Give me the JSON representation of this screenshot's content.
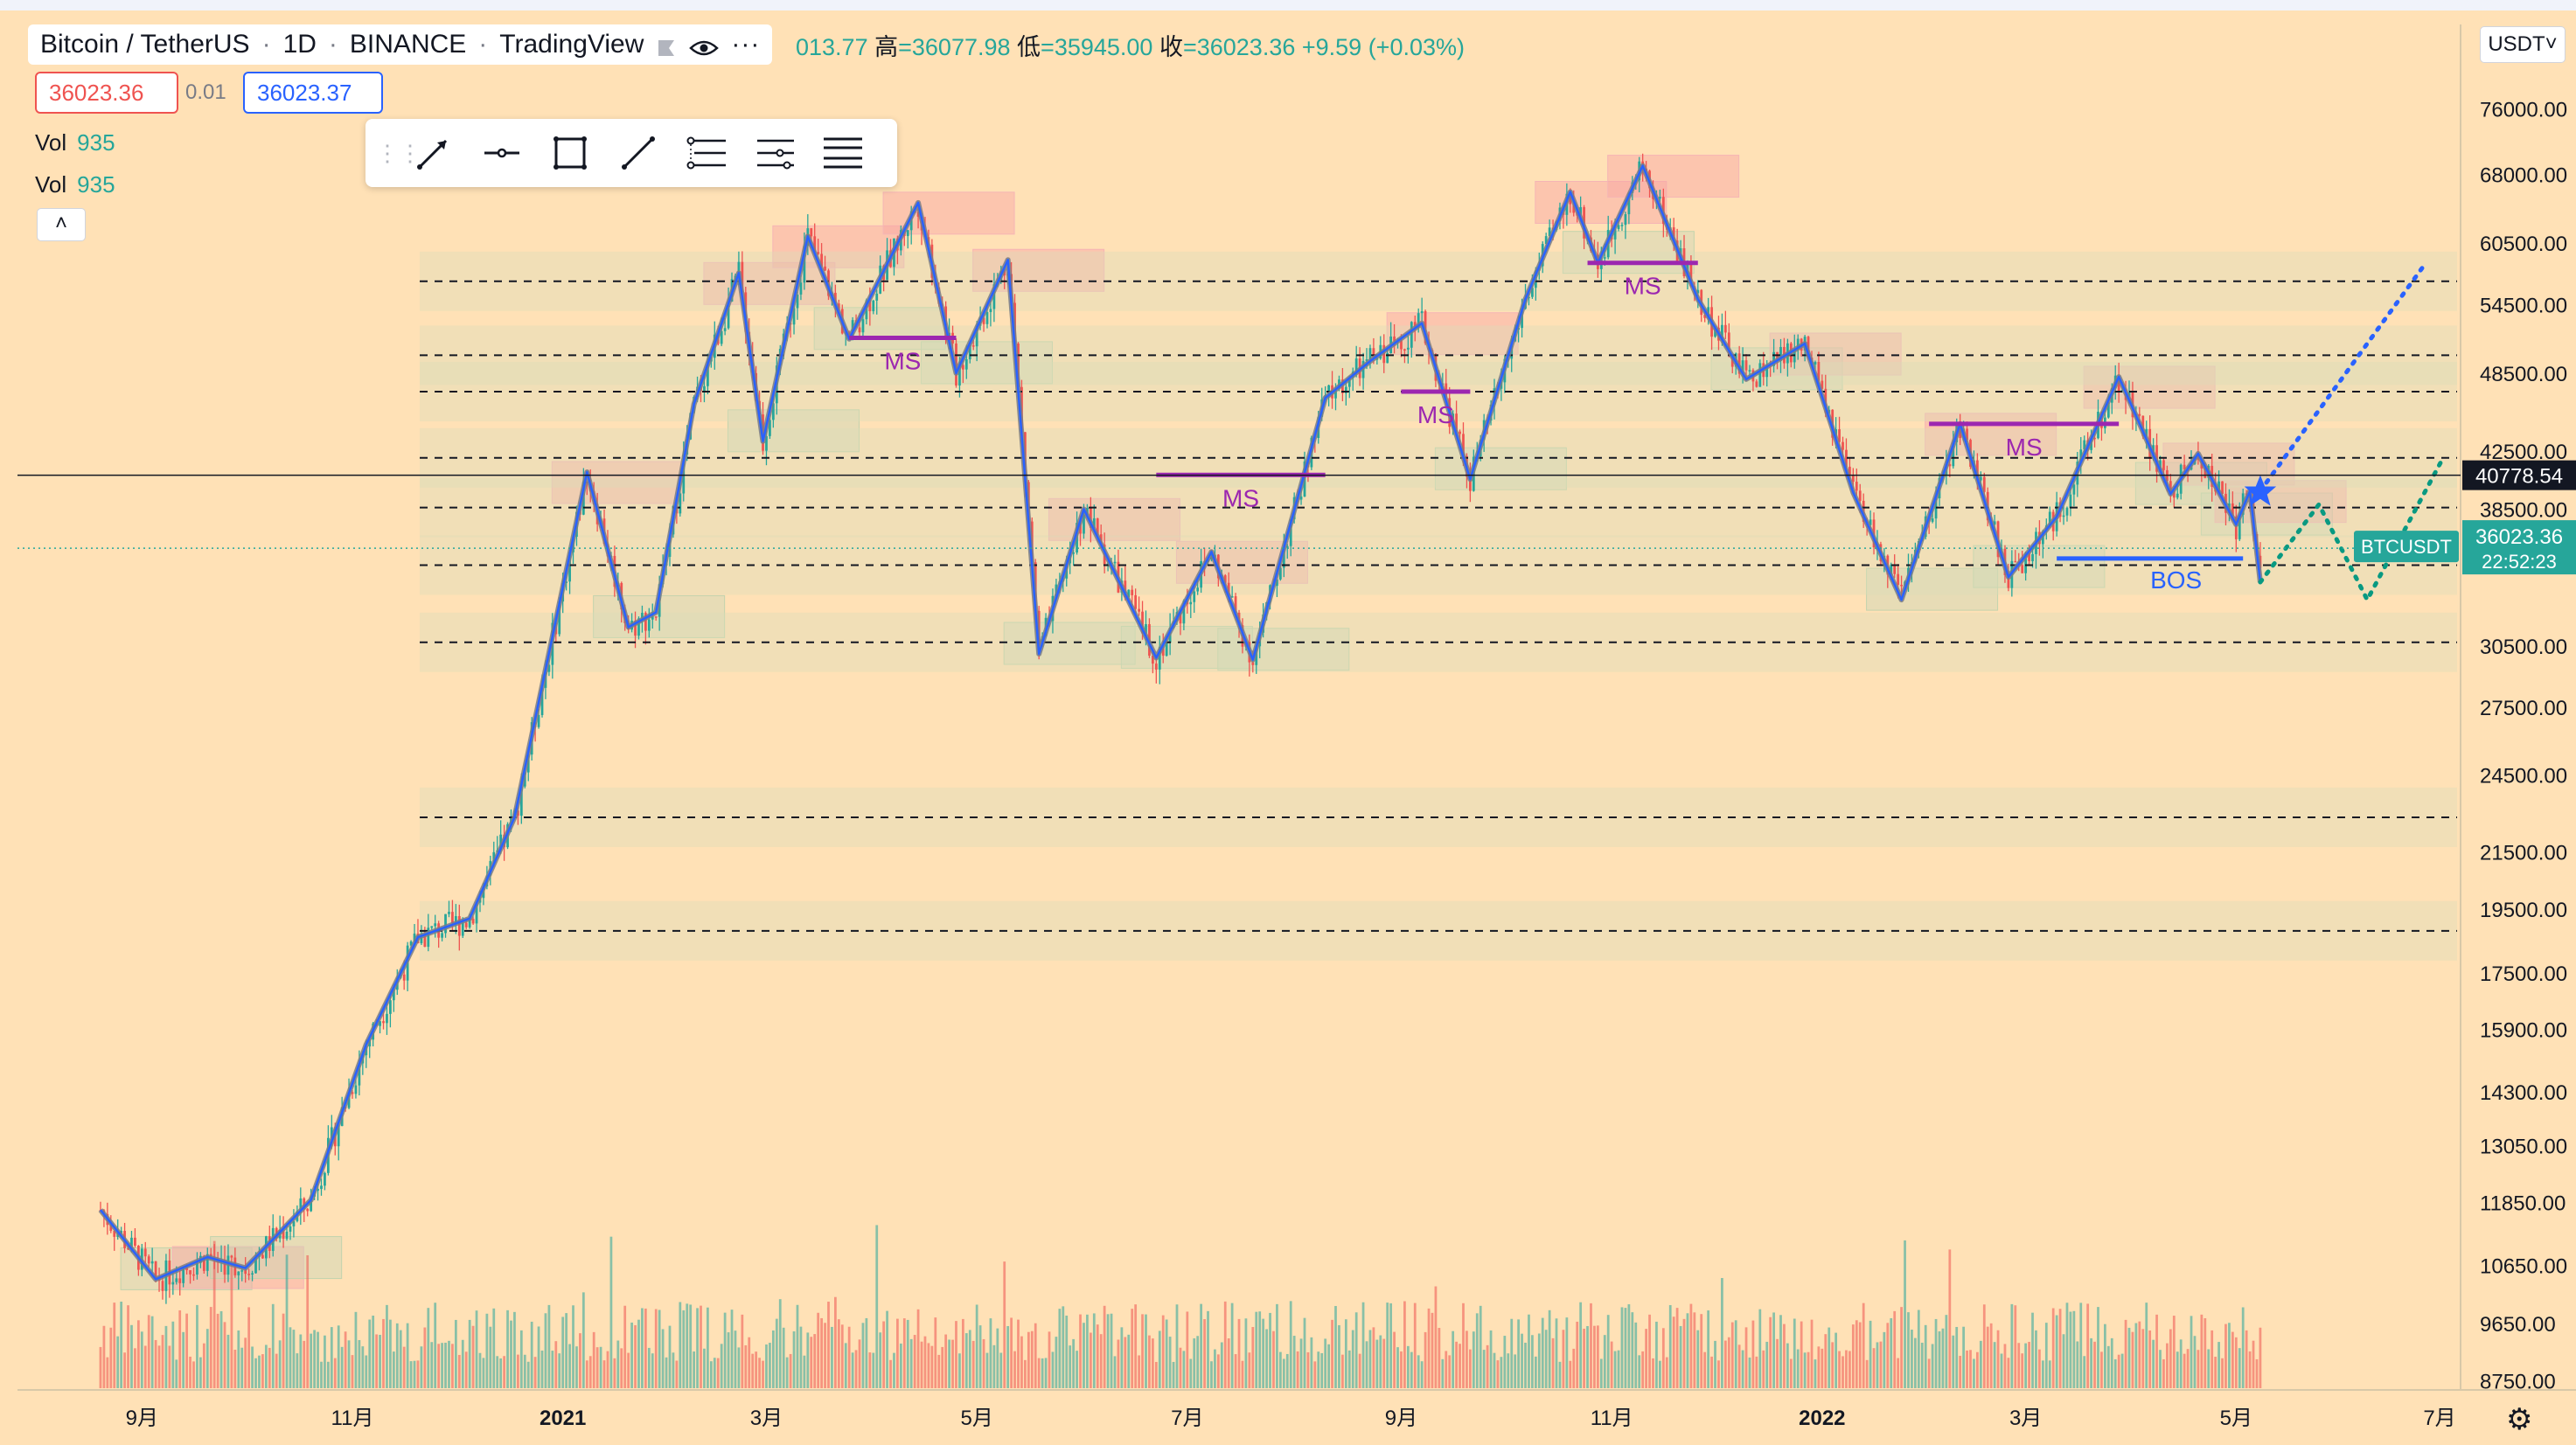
{
  "header": {
    "symbol": "Bitcoin / TetherUS",
    "interval": "1D",
    "exchange": "BINANCE",
    "source": "TradingView",
    "ohlc_prefix": "013.77",
    "high_label": "高",
    "high": "36077.98",
    "low_label": "低",
    "low": "35945.00",
    "close_label": "收",
    "close": "36023.36",
    "change": "+9.59 (+0.03%)",
    "icons": [
      "flag-icon",
      "eye-icon",
      "more-icon"
    ]
  },
  "order": {
    "sell": "36023.36",
    "spread": "0.01",
    "buy": "36023.37"
  },
  "indicators": [
    {
      "name": "Vol",
      "value": "935"
    },
    {
      "name": "Vol",
      "value": "935"
    }
  ],
  "toolbar": {
    "tools": [
      "grip-icon",
      "arrow-line-icon",
      "horizontal-ray-icon",
      "rectangle-icon",
      "trend-line-icon",
      "fib-retracement-icon",
      "parallel-channel-icon",
      "menu-lines-icon"
    ]
  },
  "price_axis": {
    "currency": "USDT",
    "labels": [
      "76000.00",
      "68000.00",
      "60500.00",
      "54500.00",
      "48500.00",
      "42500.00",
      "38500.00",
      "30500.00",
      "27500.00",
      "24500.00",
      "21500.00",
      "19500.00",
      "17500.00",
      "15900.00",
      "14300.00",
      "13050.00",
      "11850.00",
      "10650.00",
      "9650.00",
      "8750.00"
    ],
    "crosshair_price": "40778.54",
    "last_price": "36023.36",
    "countdown": "22:52:23",
    "ticker_tag": "BTCUSDT"
  },
  "time_axis": {
    "labels": [
      "9月",
      "11月",
      "2021",
      "3月",
      "5月",
      "7月",
      "9月",
      "11月",
      "2022",
      "3月",
      "5月",
      "7月"
    ]
  },
  "annotations": {
    "ms": "MS",
    "bos": "BOS"
  },
  "colors": {
    "background": "#ffe1b6",
    "up": "#26a69a",
    "down": "#ef5350",
    "zigzag": "#787b86",
    "impulse": "#2962ff",
    "ms_line": "#9c27b0",
    "bos_line": "#2962ff",
    "last_price": "#26a69a",
    "projection_up": "#2962ff",
    "projection_down": "#089981"
  },
  "chart_data": {
    "type": "line",
    "title": "",
    "xlabel": "",
    "ylabel": "",
    "ylim": [
      8000,
      80000
    ],
    "log_scale": true,
    "x": [
      "2020-08-20",
      "2020-09-05",
      "2020-09-20",
      "2020-10-01",
      "2020-10-20",
      "2020-11-05",
      "2020-11-20",
      "2020-12-05",
      "2020-12-18",
      "2021-01-08",
      "2021-01-20",
      "2021-01-28",
      "2021-02-08",
      "2021-02-21",
      "2021-02-28",
      "2021-03-13",
      "2021-03-25",
      "2021-04-14",
      "2021-04-25",
      "2021-05-10",
      "2021-05-19",
      "2021-06-01",
      "2021-06-22",
      "2021-07-08",
      "2021-07-20",
      "2021-08-10",
      "2021-08-23",
      "2021-09-07",
      "2021-09-21",
      "2021-10-07",
      "2021-10-20",
      "2021-10-28",
      "2021-11-10",
      "2021-11-26",
      "2021-12-10",
      "2021-12-27",
      "2022-01-10",
      "2022-01-24",
      "2022-02-10",
      "2022-02-24",
      "2022-03-10",
      "2022-03-28",
      "2022-04-12",
      "2022-04-20",
      "2022-05-01",
      "2022-05-05",
      "2022-05-08"
    ],
    "series": [
      {
        "values": [
          11700,
          10400,
          10800,
          10600,
          11900,
          15500,
          18600,
          19200,
          22800,
          41000,
          31500,
          32300,
          46000,
          57500,
          43200,
          61200,
          51400,
          64800,
          48500,
          58800,
          30100,
          38500,
          29900,
          35800,
          29800,
          46500,
          49500,
          52800,
          40500,
          55000,
          66000,
          58500,
          69000,
          55000,
          48000,
          51000,
          39600,
          33000,
          44500,
          34300,
          38000,
          48200,
          39500,
          42300,
          37500,
          39700,
          34000
        ]
      }
    ],
    "levels": [
      30700,
      22800,
      18800,
      42000,
      38600,
      35000,
      56700,
      50000,
      47000
    ],
    "ms_levels": [
      51500,
      40800,
      47000,
      58500,
      44500
    ],
    "bos_level": 35400,
    "projections": {
      "up": [
        [
          39700,
          41500
        ],
        [
          56000,
          58500
        ]
      ],
      "down": [
        [
          36500,
          38800
        ],
        [
          33000,
          42000
        ]
      ]
    }
  }
}
